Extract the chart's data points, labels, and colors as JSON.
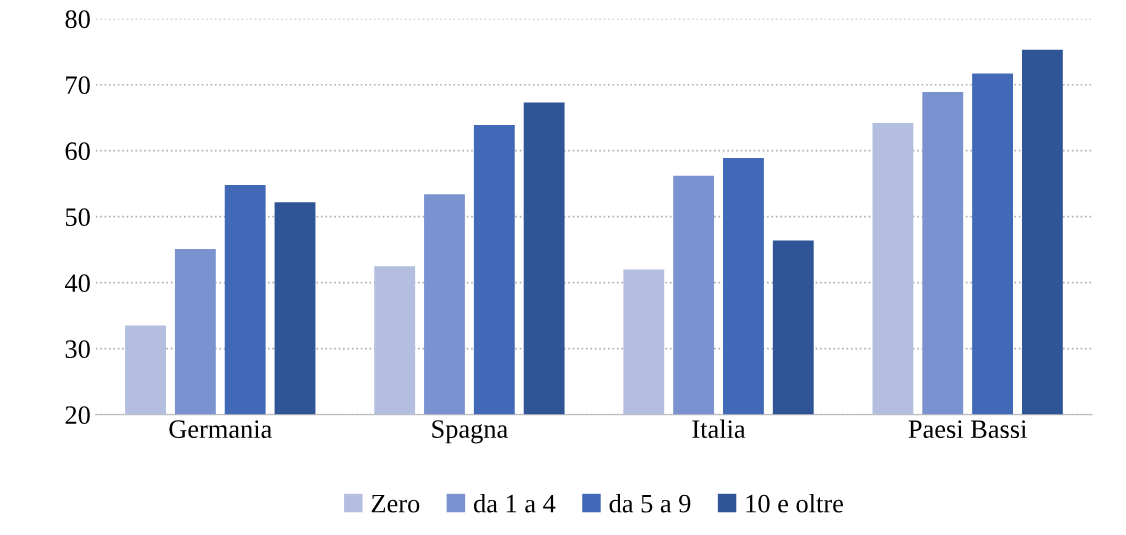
{
  "chart_data": {
    "type": "bar",
    "categories": [
      "Germania",
      "Spagna",
      "Italia",
      "Paesi Bassi"
    ],
    "series": [
      {
        "name": "Zero",
        "color": "#b4bfe0",
        "values": [
          33.5,
          42.5,
          42.0,
          64.2
        ]
      },
      {
        "name": "da 1 a 4",
        "color": "#7a93d0",
        "values": [
          45.1,
          53.4,
          56.2,
          68.9
        ]
      },
      {
        "name": "da 5 a 9",
        "color": "#4169b8",
        "values": [
          54.8,
          63.9,
          58.9,
          71.7
        ]
      },
      {
        "name": "10 e oltre",
        "color": "#2f5597",
        "values": [
          52.2,
          67.3,
          46.4,
          75.3
        ]
      }
    ],
    "ylim": [
      20,
      80
    ],
    "yticks": [
      20,
      30,
      40,
      50,
      60,
      70,
      80
    ],
    "grid": "y",
    "legend": "bottom"
  }
}
